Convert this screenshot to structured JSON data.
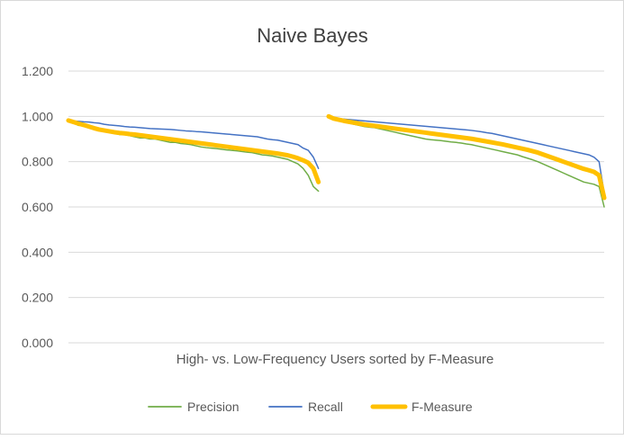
{
  "chart_data": {
    "type": "line",
    "title": "Naive Bayes",
    "xlabel": "High- vs. Low-Frequency Users sorted by F-Measure",
    "ylabel": "",
    "ylim": [
      0,
      1.2
    ],
    "yticks": [
      "0.000",
      "0.200",
      "0.400",
      "0.600",
      "0.800",
      "1.000",
      "1.200"
    ],
    "grid": true,
    "legend_position": "bottom",
    "groups": [
      {
        "points": 50,
        "series": [
          {
            "name": "Precision",
            "color": "#70ad47",
            "values": [
              0.98,
              0.97,
              0.96,
              0.96,
              0.955,
              0.95,
              0.94,
              0.935,
              0.93,
              0.925,
              0.92,
              0.92,
              0.915,
              0.91,
              0.905,
              0.905,
              0.9,
              0.9,
              0.895,
              0.89,
              0.885,
              0.885,
              0.88,
              0.878,
              0.875,
              0.87,
              0.865,
              0.862,
              0.86,
              0.858,
              0.855,
              0.852,
              0.85,
              0.848,
              0.845,
              0.842,
              0.84,
              0.835,
              0.83,
              0.828,
              0.825,
              0.82,
              0.815,
              0.81,
              0.8,
              0.79,
              0.77,
              0.74,
              0.69,
              0.67
            ]
          },
          {
            "name": "Recall",
            "color": "#4472c4",
            "values": [
              0.985,
              0.98,
              0.978,
              0.976,
              0.975,
              0.972,
              0.97,
              0.965,
              0.962,
              0.96,
              0.958,
              0.955,
              0.953,
              0.952,
              0.95,
              0.948,
              0.946,
              0.945,
              0.944,
              0.943,
              0.942,
              0.94,
              0.938,
              0.936,
              0.935,
              0.933,
              0.932,
              0.93,
              0.928,
              0.926,
              0.924,
              0.922,
              0.92,
              0.918,
              0.916,
              0.914,
              0.912,
              0.91,
              0.905,
              0.9,
              0.897,
              0.895,
              0.89,
              0.885,
              0.88,
              0.875,
              0.86,
              0.85,
              0.82,
              0.77
            ]
          },
          {
            "name": "F-Measure",
            "color": "#ffc000",
            "values": [
              0.982,
              0.975,
              0.968,
              0.962,
              0.955,
              0.948,
              0.942,
              0.938,
              0.934,
              0.93,
              0.927,
              0.925,
              0.922,
              0.92,
              0.917,
              0.914,
              0.911,
              0.908,
              0.905,
              0.902,
              0.899,
              0.896,
              0.893,
              0.89,
              0.887,
              0.884,
              0.881,
              0.878,
              0.875,
              0.872,
              0.869,
              0.866,
              0.863,
              0.86,
              0.857,
              0.854,
              0.851,
              0.848,
              0.845,
              0.842,
              0.839,
              0.836,
              0.832,
              0.828,
              0.822,
              0.815,
              0.806,
              0.795,
              0.77,
              0.71
            ]
          }
        ]
      },
      {
        "points": 55,
        "series": [
          {
            "name": "Precision",
            "color": "#70ad47",
            "values": [
              1.0,
              0.99,
              0.98,
              0.975,
              0.97,
              0.965,
              0.96,
              0.955,
              0.952,
              0.95,
              0.945,
              0.94,
              0.935,
              0.93,
              0.925,
              0.92,
              0.915,
              0.91,
              0.905,
              0.9,
              0.897,
              0.895,
              0.893,
              0.89,
              0.887,
              0.885,
              0.882,
              0.878,
              0.875,
              0.87,
              0.865,
              0.86,
              0.855,
              0.85,
              0.845,
              0.84,
              0.835,
              0.83,
              0.822,
              0.815,
              0.808,
              0.8,
              0.79,
              0.78,
              0.77,
              0.76,
              0.75,
              0.74,
              0.73,
              0.72,
              0.71,
              0.705,
              0.7,
              0.69,
              0.6
            ]
          },
          {
            "name": "Recall",
            "color": "#4472c4",
            "values": [
              1.0,
              0.995,
              0.99,
              0.988,
              0.986,
              0.984,
              0.982,
              0.98,
              0.978,
              0.976,
              0.974,
              0.972,
              0.97,
              0.968,
              0.966,
              0.964,
              0.962,
              0.96,
              0.958,
              0.956,
              0.954,
              0.952,
              0.95,
              0.948,
              0.946,
              0.944,
              0.942,
              0.94,
              0.938,
              0.935,
              0.932,
              0.928,
              0.925,
              0.92,
              0.915,
              0.91,
              0.905,
              0.9,
              0.895,
              0.89,
              0.885,
              0.88,
              0.875,
              0.87,
              0.865,
              0.86,
              0.855,
              0.85,
              0.845,
              0.84,
              0.835,
              0.83,
              0.82,
              0.8,
              0.66
            ]
          },
          {
            "name": "F-Measure",
            "color": "#ffc000",
            "values": [
              1.0,
              0.99,
              0.985,
              0.98,
              0.976,
              0.972,
              0.968,
              0.964,
              0.961,
              0.958,
              0.955,
              0.952,
              0.949,
              0.946,
              0.943,
              0.94,
              0.937,
              0.934,
              0.931,
              0.928,
              0.925,
              0.922,
              0.919,
              0.916,
              0.913,
              0.91,
              0.907,
              0.904,
              0.901,
              0.897,
              0.893,
              0.889,
              0.885,
              0.881,
              0.877,
              0.872,
              0.867,
              0.862,
              0.857,
              0.852,
              0.846,
              0.84,
              0.832,
              0.824,
              0.816,
              0.808,
              0.8,
              0.792,
              0.784,
              0.776,
              0.768,
              0.762,
              0.755,
              0.74,
              0.64
            ]
          }
        ]
      }
    ]
  }
}
